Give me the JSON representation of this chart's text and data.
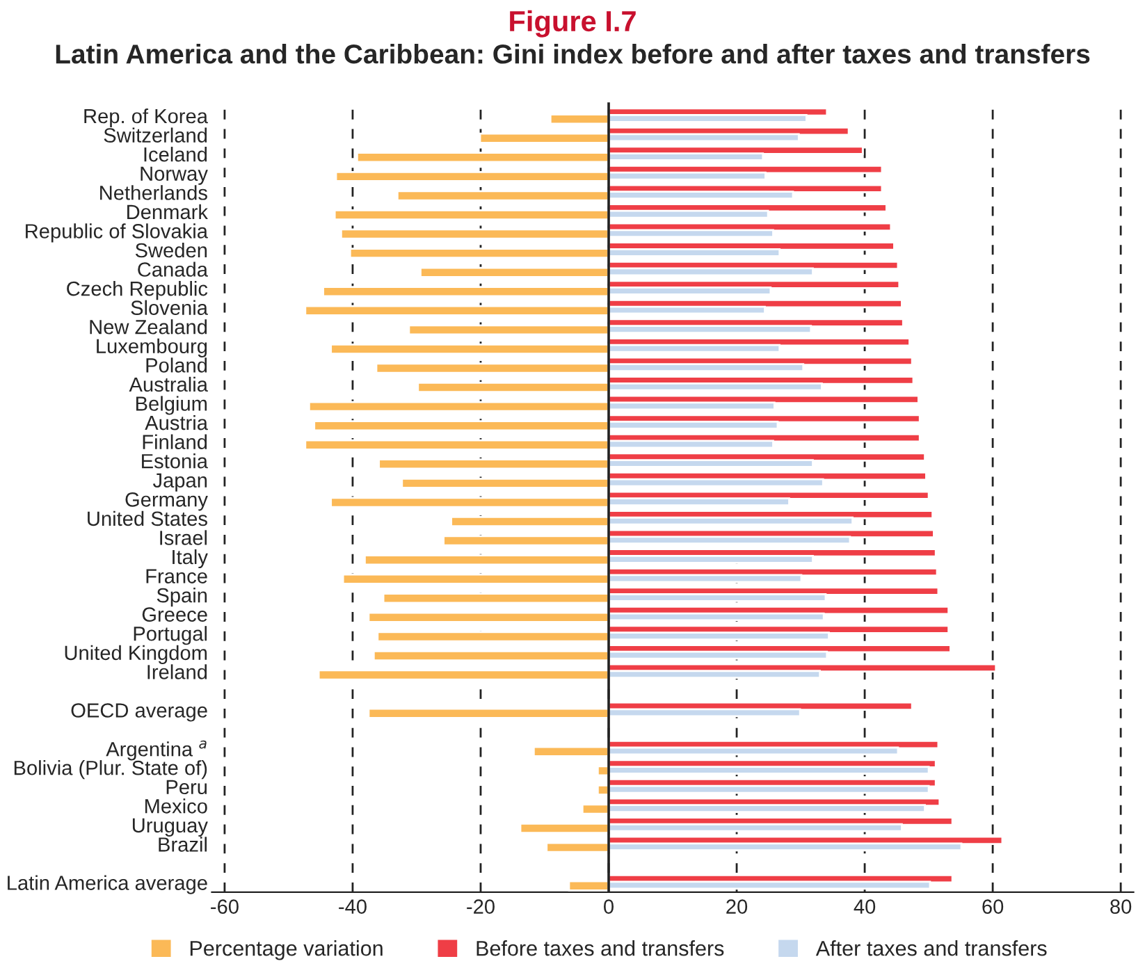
{
  "chart_data": {
    "type": "bar",
    "orientation": "horizontal",
    "title": "Figure I.7",
    "subtitle": "Latin America and the Caribbean: Gini index before and after taxes and transfers",
    "categories": [
      "Rep. of Korea",
      "Switzerland",
      "Iceland",
      "Norway",
      "Netherlands",
      "Denmark",
      "Republic of Slovakia",
      "Sweden",
      "Canada",
      "Czech Republic",
      "Slovenia",
      "New Zealand",
      "Luxembourg",
      "Poland",
      "Australia",
      "Belgium",
      "Austria",
      "Finland",
      "Estonia",
      "Japan",
      "Germany",
      "United States",
      "Israel",
      "Italy",
      "France",
      "Spain",
      "Greece",
      "Portugal",
      "United Kingdom",
      "Ireland",
      null,
      "OECD average",
      null,
      "Argentina $^{a}$",
      "Bolivia (Plur. State of)",
      "Peru",
      "Mexico",
      "Uruguay",
      "Brazil",
      null,
      "Latin America average"
    ],
    "series": [
      {
        "name": "Percentage variation",
        "color": "#fbb957",
        "values": [
          -9.1,
          -20.1,
          -39.3,
          -42.6,
          -33.0,
          -42.8,
          -41.8,
          -40.4,
          -29.4,
          -44.6,
          -47.4,
          -31.2,
          -43.4,
          -36.3,
          -29.8,
          -46.8,
          -46.0,
          -47.4,
          -35.9,
          -32.3,
          -43.4,
          -24.6,
          -25.8,
          -38.1,
          -41.5,
          -35.2,
          -37.5,
          -36.1,
          -36.7,
          -45.3,
          null,
          -37.5,
          null,
          -11.7,
          -1.7,
          -1.7,
          -4.1,
          -13.8,
          -9.7,
          null,
          -6.2
        ]
      },
      {
        "name": "Before taxes and transfers",
        "color": "#ef3e46",
        "values": [
          34.1,
          37.5,
          39.7,
          42.7,
          42.7,
          43.4,
          44.1,
          44.6,
          45.2,
          45.4,
          45.8,
          46.0,
          47.0,
          47.4,
          47.6,
          48.4,
          48.6,
          48.6,
          49.4,
          49.6,
          50.0,
          50.6,
          50.8,
          51.1,
          51.3,
          51.5,
          53.1,
          53.1,
          53.4,
          60.5,
          null,
          47.4,
          null,
          51.5,
          51.1,
          51.1,
          51.7,
          53.7,
          61.5,
          null,
          53.7
        ]
      },
      {
        "name": "After taxes and transfers",
        "color": "#c5d8ee",
        "values": [
          30.9,
          29.7,
          24.1,
          24.5,
          28.8,
          24.9,
          25.7,
          26.7,
          31.9,
          25.3,
          24.4,
          31.6,
          26.7,
          30.4,
          33.3,
          25.9,
          26.4,
          25.7,
          31.9,
          33.5,
          28.2,
          38.1,
          37.7,
          31.9,
          30.1,
          33.9,
          33.6,
          34.4,
          34.1,
          33.0,
          null,
          29.9,
          null,
          45.2,
          50.0,
          50.0,
          49.4,
          45.8,
          55.1,
          null,
          50.2
        ]
      }
    ],
    "xlim": [
      -62,
      82
    ],
    "xticks": [
      -60,
      -40,
      -20,
      0,
      20,
      40,
      60,
      80
    ],
    "grid": "x",
    "legend": "bottom"
  }
}
